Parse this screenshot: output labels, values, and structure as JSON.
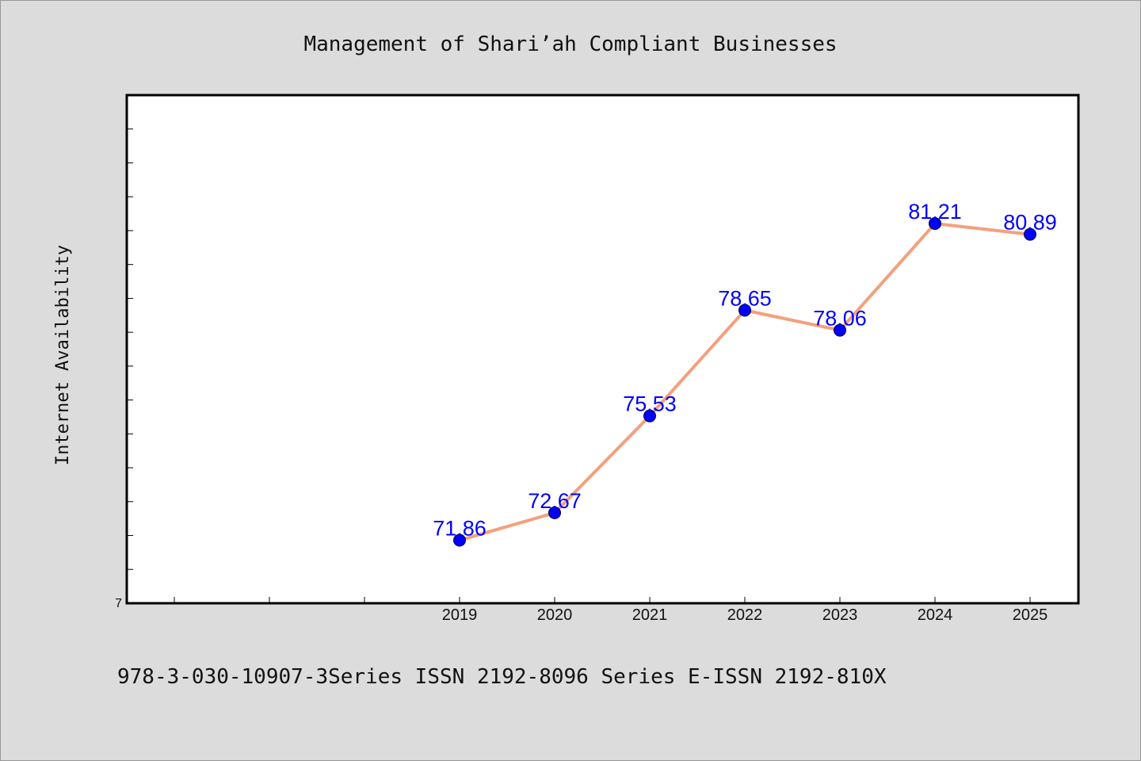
{
  "chart_data": {
    "type": "line",
    "title": "Management of Shari’ah Compliant Businesses",
    "xlabel": "",
    "ylabel": "Internet Availability",
    "categories": [
      "2019",
      "2020",
      "2021",
      "2022",
      "2023",
      "2024",
      "2025"
    ],
    "series": [
      {
        "values": [
          71.86,
          72.67,
          75.53,
          78.65,
          78.06,
          81.21,
          80.89
        ]
      }
    ],
    "data_labels": [
      "71.86",
      "72.67",
      "75.53",
      "78.65",
      "78.06",
      "81.21",
      "80.89"
    ],
    "y_tick_label": "7",
    "ylim": [
      70,
      85
    ],
    "grid": false,
    "legend": "none",
    "colors": {
      "line": "#f4a07c",
      "marker": "#0000ff",
      "label": "#0000ff",
      "background": "#dcdcdc",
      "plot_bg": "#ffffff"
    }
  },
  "footer": {
    "text": "978-3-030-10907-3Series ISSN 2192-8096 Series E-ISSN 2192-810X"
  }
}
